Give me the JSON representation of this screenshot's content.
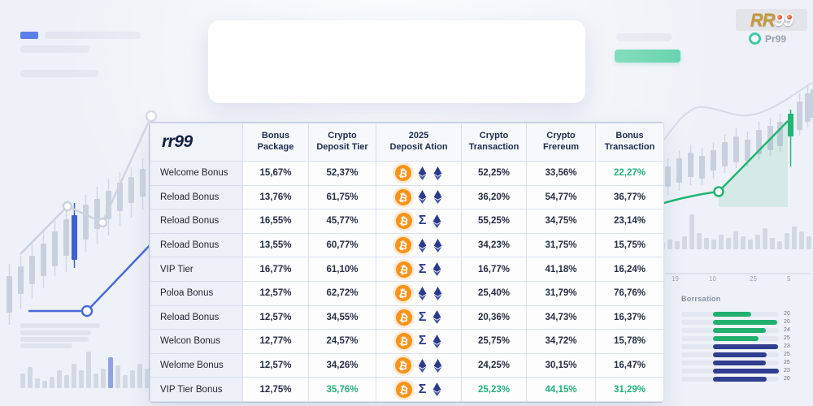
{
  "logo": {
    "rr": "RR",
    "nines": "99",
    "badge_label": "Pr99"
  },
  "icons": {
    "bitcoin": "₿",
    "sigma": "Σ",
    "ethereum": "eth-diamond"
  },
  "colors": {
    "accent_green": "#25b07a",
    "navy_blue": "#2f3e8e",
    "bitcoin_orange": "#f7931a",
    "line_blue": "#4a6bd8",
    "chart_green": "#21b573"
  },
  "table": {
    "brand": "rr99",
    "columns": [
      "Bonus\nPackage",
      "Crypto\nDeposit Tier",
      "2025\nDeposit Ation",
      "Crypto\nTransaction",
      "Crypto\nFrereum",
      "Bonus\nTransaction"
    ],
    "rows": [
      {
        "label": "Welcome Bonus",
        "values": [
          "15,67%",
          "52,37%",
          "52,25%",
          "33,56%",
          "22,27%"
        ],
        "icon_set": "btc-eth-eth",
        "green": [
          false,
          false,
          false,
          false,
          true
        ]
      },
      {
        "label": "Reload Bonus",
        "values": [
          "13,76%",
          "61,75%",
          "36,20%",
          "54,77%",
          "36,77%"
        ],
        "icon_set": "btc-eth-eth",
        "green": [
          false,
          false,
          false,
          false,
          false
        ]
      },
      {
        "label": "Reload Bonus",
        "values": [
          "16,55%",
          "45,77%",
          "55,25%",
          "34,75%",
          "23,14%"
        ],
        "icon_set": "btc-sigma-eth",
        "green": [
          false,
          false,
          false,
          false,
          false
        ]
      },
      {
        "label": "Reload Bonus",
        "values": [
          "13,55%",
          "60,77%",
          "34,23%",
          "31,75%",
          "15,75%"
        ],
        "icon_set": "btc-eth-eth",
        "green": [
          false,
          false,
          false,
          false,
          false
        ]
      },
      {
        "label": "VIP Tier",
        "values": [
          "16,77%",
          "61,10%",
          "16,77%",
          "41,18%",
          "16,24%"
        ],
        "icon_set": "btc-sigma-eth",
        "green": [
          false,
          false,
          false,
          false,
          false
        ]
      },
      {
        "label": "Poloa Bonus",
        "values": [
          "12,57%",
          "62,72%",
          "25,40%",
          "31,79%",
          "76,76%"
        ],
        "icon_set": "btc-eth-eth",
        "green": [
          false,
          false,
          false,
          false,
          false
        ]
      },
      {
        "label": "Reload Bonus",
        "values": [
          "12,57%",
          "34,55%",
          "20,36%",
          "34,73%",
          "16,37%"
        ],
        "icon_set": "btc-sigma-eth",
        "green": [
          false,
          false,
          false,
          false,
          false
        ]
      },
      {
        "label": "Welcon Bonus",
        "values": [
          "12,77%",
          "24,57%",
          "25,75%",
          "34,72%",
          "15,78%"
        ],
        "icon_set": "btc-sigma-eth",
        "green": [
          false,
          false,
          false,
          false,
          false
        ]
      },
      {
        "label": "Welome Bonus",
        "values": [
          "12,57%",
          "34,26%",
          "24,25%",
          "30,15%",
          "16,47%"
        ],
        "icon_set": "btc-eth-eth",
        "green": [
          false,
          false,
          false,
          false,
          false
        ]
      },
      {
        "label": "VIP Tier Bonus",
        "values": [
          "12,75%",
          "35,76%",
          "25,23%",
          "44,15%",
          "31,29%"
        ],
        "icon_set": "btc-sigma-eth",
        "green": [
          false,
          true,
          true,
          true,
          true
        ]
      }
    ]
  },
  "right_panel": {
    "axis_labels": [
      "19",
      "10",
      "25",
      "5"
    ],
    "bar_chart": {
      "title": "Borrsation",
      "bars": [
        {
          "value": "20",
          "color": "green",
          "length": 47
        },
        {
          "value": "20",
          "color": "green",
          "length": 79
        },
        {
          "value": "24",
          "color": "green",
          "length": 65
        },
        {
          "value": "25",
          "color": "green",
          "length": 56
        },
        {
          "value": "23",
          "color": "blue",
          "length": 80
        },
        {
          "value": "25",
          "color": "blue",
          "length": 66
        },
        {
          "value": "25",
          "color": "blue",
          "length": 65
        },
        {
          "value": "23",
          "color": "blue",
          "length": 81
        },
        {
          "value": "20",
          "color": "blue",
          "length": 66
        }
      ]
    }
  },
  "chart_data": {
    "type": "bar",
    "orientation": "horizontal",
    "title": "Borrsation",
    "values": [
      20,
      20,
      24,
      25,
      23,
      25,
      25,
      23,
      20
    ],
    "bar_colors": [
      "#22b06f",
      "#22b06f",
      "#22b06f",
      "#22b06f",
      "#2f3e8e",
      "#2f3e8e",
      "#2f3e8e",
      "#2f3e8e",
      "#2f3e8e"
    ],
    "x_axis_labels": [
      "19",
      "10",
      "25",
      "5"
    ],
    "legend": "none"
  }
}
